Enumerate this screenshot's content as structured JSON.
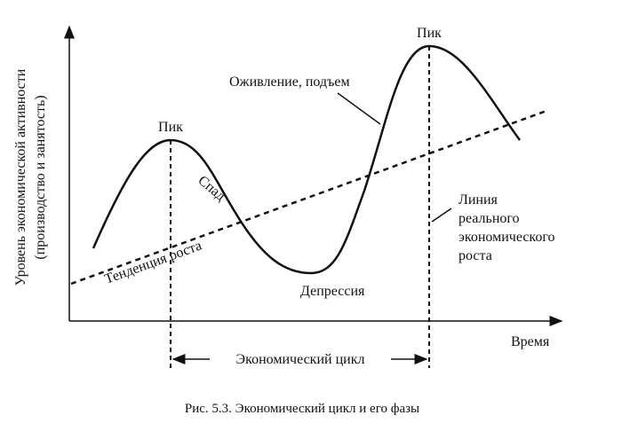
{
  "diagram": {
    "y_axis_label": [
      "Уровень экономической активности",
      "(производство и занятость)"
    ],
    "x_axis_label": "Время",
    "peak_left": "Пик",
    "peak_right": "Пик",
    "recovery": "Оживление, подъем",
    "recession": "Спад",
    "trend": "Тенденция роста",
    "depression": "Депрессия",
    "real_growth_line": [
      "Линия",
      "реального",
      "экономического",
      "роста"
    ],
    "cycle": "Экономический цикл"
  },
  "caption": "Рис. 5.3. Экономический цикл и его фазы"
}
